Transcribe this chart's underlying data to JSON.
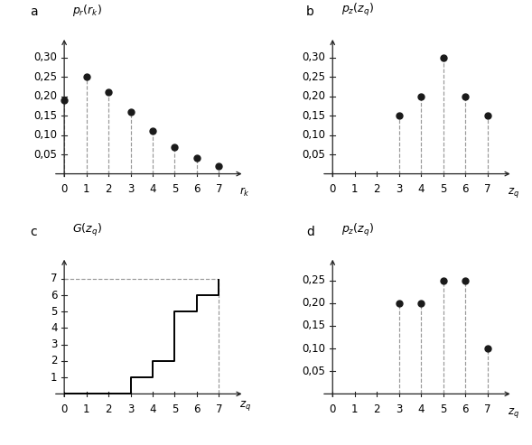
{
  "panel_a": {
    "label": "a",
    "ylabel": "$p_r(r_k)$",
    "xlabel": "$r_k$",
    "x": [
      0,
      1,
      2,
      3,
      4,
      5,
      6,
      7
    ],
    "y": [
      0.19,
      0.25,
      0.21,
      0.16,
      0.11,
      0.07,
      0.04,
      0.02
    ],
    "yticks": [
      0.05,
      0.1,
      0.15,
      0.2,
      0.25,
      0.3
    ],
    "ytick_labels": [
      "0,05",
      "0,10",
      "0,15",
      "0,20",
      "0,25",
      "0,30"
    ],
    "ylim": [
      0,
      0.34
    ],
    "xlim": [
      -0.5,
      7.8
    ]
  },
  "panel_b": {
    "label": "b",
    "ylabel": "$p_z(z_q)$",
    "xlabel": "$z_q$",
    "x": [
      3,
      4,
      5,
      6,
      7
    ],
    "y": [
      0.15,
      0.2,
      0.3,
      0.2,
      0.15
    ],
    "yticks": [
      0.05,
      0.1,
      0.15,
      0.2,
      0.25,
      0.3
    ],
    "ytick_labels": [
      "0,05",
      "0,10",
      "0,15",
      "0,20",
      "0,25",
      "0,30"
    ],
    "ylim": [
      0,
      0.34
    ],
    "xlim": [
      -0.5,
      7.8
    ]
  },
  "panel_c": {
    "label": "c",
    "ylabel": "$G(z_q)$",
    "xlabel": "$z_q$",
    "step_x": [
      0,
      3,
      3,
      4,
      4,
      5,
      5,
      6,
      6,
      7,
      7
    ],
    "step_y": [
      0,
      0,
      1,
      1,
      2,
      2,
      5,
      5,
      6,
      6,
      7
    ],
    "yticks": [
      1,
      2,
      3,
      4,
      5,
      6,
      7
    ],
    "ytick_labels": [
      "1",
      "2",
      "3",
      "4",
      "5",
      "6",
      "7"
    ],
    "ylim": [
      0,
      8.0
    ],
    "xlim": [
      -0.5,
      7.8
    ]
  },
  "panel_d": {
    "label": "d",
    "ylabel": "$p_z(z_q)$",
    "xlabel": "$z_q$",
    "x": [
      3,
      4,
      5,
      6,
      7
    ],
    "y": [
      0.2,
      0.2,
      0.25,
      0.25,
      0.1
    ],
    "yticks": [
      0.05,
      0.1,
      0.15,
      0.2,
      0.25
    ],
    "ytick_labels": [
      "0,05",
      "0,10",
      "0,15",
      "0,20",
      "0,25"
    ],
    "ylim": [
      0,
      0.29
    ],
    "xlim": [
      -0.5,
      7.8
    ]
  },
  "dot_color": "#1a1a1a",
  "dashed_color": "#999999",
  "axis_color": "#222222",
  "font_size": 8.5,
  "label_font_size": 10,
  "title_font_size": 9
}
